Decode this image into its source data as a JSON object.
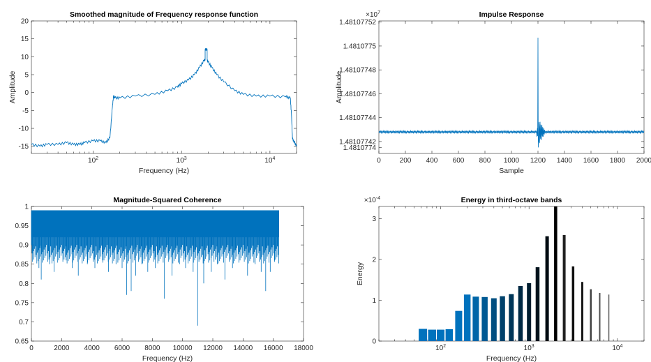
{
  "chart_data": [
    {
      "id": "frf",
      "type": "line",
      "title": "Smoothed magnitude of Frequency response function",
      "xlabel": "Frequency (Hz)",
      "ylabel": "Amplitude",
      "xscale": "log",
      "xlim": [
        20,
        20000
      ],
      "ylim": [
        -17,
        20
      ],
      "yticks": [
        "-15",
        "-10",
        "-5",
        "0",
        "5",
        "10",
        "15",
        "20"
      ],
      "xticks": [
        "10^2",
        "10^3",
        "10^4"
      ],
      "color": "#0072BD",
      "x": [
        20,
        25,
        30,
        40,
        50,
        60,
        70,
        80,
        100,
        120,
        140,
        155,
        165,
        170,
        175,
        200,
        300,
        500,
        700,
        900,
        1000,
        1200,
        1400,
        1600,
        1800,
        1850,
        1850,
        1950,
        1950,
        2000,
        2200,
        2500,
        3000,
        4000,
        5000,
        7000,
        10000,
        15000,
        17000,
        17500,
        18000,
        19000,
        20000
      ],
      "y": [
        -14.5,
        -15.0,
        -14.5,
        -14.5,
        -14.0,
        -14.5,
        -14.5,
        -14.0,
        -13.5,
        -13.5,
        -14.0,
        -12.5,
        -4.0,
        -1.0,
        -1.5,
        -1.5,
        -1.0,
        -0.5,
        0.5,
        1.5,
        2.5,
        3.5,
        5.0,
        7.0,
        9.0,
        9.0,
        12.0,
        12.0,
        9.0,
        8.5,
        7.0,
        5.0,
        3.0,
        0.5,
        -0.5,
        -1.0,
        -1.0,
        -1.2,
        -1.5,
        -6.0,
        -13.0,
        -14.0,
        -15.0
      ]
    },
    {
      "id": "impulse",
      "type": "line",
      "title": "Impulse Response",
      "xlabel": "Sample",
      "ylabel": "Amplitude",
      "exponent_label": "×10",
      "exponent_power": "7",
      "xlim": [
        0,
        2000
      ],
      "ylim": [
        1.48107741,
        1.481077521
      ],
      "xticks": [
        "0",
        "200",
        "400",
        "600",
        "800",
        "1000",
        "1200",
        "1400",
        "1600",
        "1800",
        "2000"
      ],
      "yticks": [
        "1.4810774",
        "1.48107742",
        "1.48107744",
        "1.48107746",
        "1.48107748",
        "1.4810775",
        "1.48107752"
      ],
      "yticks_values": [
        1.481077415,
        1.48107742,
        1.48107744,
        1.48107746,
        1.48107748,
        1.4810775,
        1.48107752
      ],
      "color": "#0072BD",
      "baseline": 1.481077428,
      "spike_at": 1200,
      "spike_peak": 1.481077507,
      "spike_trough": 1.481077415
    },
    {
      "id": "coherence",
      "type": "line",
      "title": "Magnitude-Squared Coherence",
      "xlabel": "Frequency (Hz)",
      "ylabel": "",
      "xlim": [
        0,
        18000
      ],
      "ylim": [
        0.65,
        1.0
      ],
      "xticks": [
        "0",
        "2000",
        "4000",
        "6000",
        "8000",
        "10000",
        "12000",
        "14000",
        "16000",
        "18000"
      ],
      "yticks": [
        "0.65",
        "0.7",
        "0.75",
        "0.8",
        "0.85",
        "0.9",
        "0.95",
        "1"
      ],
      "color": "#0072BD",
      "x_end": 16384,
      "band_top": 0.99,
      "band_bottom": 0.92,
      "dips": [
        [
          500,
          0.84
        ],
        [
          650,
          0.81
        ],
        [
          1200,
          0.85
        ],
        [
          1500,
          0.83
        ],
        [
          2300,
          0.86
        ],
        [
          2700,
          0.84
        ],
        [
          3100,
          0.82
        ],
        [
          3700,
          0.85
        ],
        [
          4200,
          0.84
        ],
        [
          4700,
          0.86
        ],
        [
          5100,
          0.83
        ],
        [
          5600,
          0.85
        ],
        [
          6000,
          0.84
        ],
        [
          6300,
          0.77
        ],
        [
          6600,
          0.78
        ],
        [
          6900,
          0.82
        ],
        [
          7300,
          0.85
        ],
        [
          7700,
          0.83
        ],
        [
          8200,
          0.84
        ],
        [
          8800,
          0.76
        ],
        [
          9300,
          0.82
        ],
        [
          9800,
          0.85
        ],
        [
          10200,
          0.84
        ],
        [
          10700,
          0.83
        ],
        [
          11000,
          0.69
        ],
        [
          11400,
          0.8
        ],
        [
          11900,
          0.83
        ],
        [
          12300,
          0.85
        ],
        [
          12800,
          0.81
        ],
        [
          13300,
          0.84
        ],
        [
          13800,
          0.86
        ],
        [
          14300,
          0.82
        ],
        [
          14800,
          0.85
        ],
        [
          15200,
          0.83
        ],
        [
          15500,
          0.78
        ],
        [
          15800,
          0.83
        ],
        [
          16100,
          0.86
        ]
      ]
    },
    {
      "id": "thirdoctave",
      "type": "bar",
      "title": "Energy in third-octave bands",
      "xlabel": "Frequency (Hz)",
      "ylabel": "Energy",
      "exponent_label": "×10",
      "exponent_power": "-4",
      "xscale": "log",
      "xlim": [
        20,
        20000
      ],
      "ylim": [
        0,
        3.3
      ],
      "xticks": [
        "10^2",
        "10^3",
        "10^4"
      ],
      "yticks": [
        "0",
        "1",
        "2",
        "3"
      ],
      "yticks_values": [
        0,
        1,
        2,
        3
      ],
      "frequencies": [
        63,
        80,
        100,
        125,
        160,
        200,
        250,
        315,
        400,
        500,
        630,
        800,
        1000,
        1250,
        1600,
        2000,
        2500,
        3150,
        4000,
        5000,
        6300,
        8000
      ],
      "values": [
        0.3,
        0.28,
        0.28,
        0.29,
        0.74,
        1.14,
        1.09,
        1.08,
        1.05,
        1.1,
        1.15,
        1.35,
        1.42,
        1.81,
        2.57,
        3.35,
        2.6,
        1.83,
        1.45,
        1.27,
        1.18,
        1.14
      ],
      "colors": [
        "#0072BD",
        "#0072BD",
        "#0072BD",
        "#0072BD",
        "#0072BD",
        "#0072BD",
        "#0066A8",
        "#005A94",
        "#004E80",
        "#00426C",
        "#003658",
        "#002A44",
        "#001E30",
        "#00121C",
        "#000A10",
        "#000000",
        "#202020",
        "#101010",
        "#181818",
        "#404040",
        "#505050",
        "#606060"
      ]
    }
  ]
}
